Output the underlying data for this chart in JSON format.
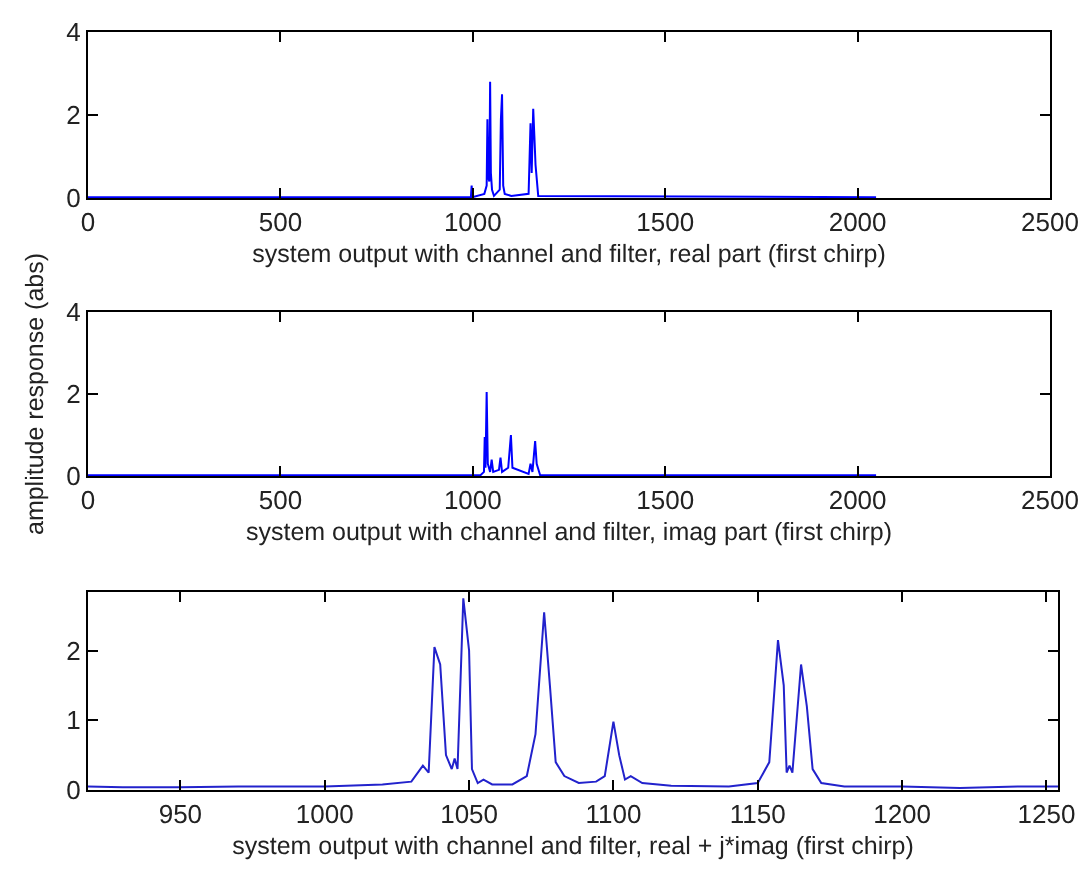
{
  "chart_data": [
    {
      "type": "line",
      "xlabel": "system output with channel and filter, real part (first chirp)",
      "xlim": [
        0,
        2500
      ],
      "xticks": [
        0,
        500,
        1000,
        1500,
        2000,
        2500
      ],
      "ylim": [
        0,
        4
      ],
      "yticks": [
        0,
        2,
        4
      ],
      "grid": false,
      "x": [
        0,
        995,
        997,
        999,
        1030,
        1036,
        1038,
        1040,
        1043,
        1045,
        1047,
        1050,
        1055,
        1070,
        1073,
        1076,
        1079,
        1083,
        1100,
        1145,
        1150,
        1153,
        1157,
        1160,
        1163,
        1170,
        2048
      ],
      "series": [
        {
          "color": "#0000ff",
          "values": [
            0.02,
            0.02,
            0.3,
            0.02,
            0.1,
            0.3,
            1.9,
            0.5,
            0.4,
            2.8,
            0.6,
            0.2,
            0.05,
            0.2,
            1.9,
            2.5,
            0.3,
            0.1,
            0.05,
            0.1,
            1.8,
            0.6,
            2.15,
            1.5,
            0.8,
            0.05,
            0.02
          ]
        }
      ]
    },
    {
      "type": "line",
      "xlabel": "system output with channel and filter, imag part (first chirp)",
      "ylabel": "amplitude response (abs)",
      "xlim": [
        0,
        2500
      ],
      "xticks": [
        0,
        500,
        1000,
        1500,
        2000,
        2500
      ],
      "ylim": [
        0,
        4
      ],
      "yticks": [
        0,
        2,
        4
      ],
      "grid": false,
      "x": [
        0,
        1020,
        1029,
        1031,
        1033,
        1036,
        1039,
        1045,
        1049,
        1053,
        1068,
        1072,
        1076,
        1092,
        1099,
        1103,
        1145,
        1150,
        1155,
        1162,
        1166,
        1175,
        2048
      ],
      "series": [
        {
          "color": "#0000ff",
          "values": [
            0.02,
            0.02,
            0.1,
            0.95,
            0.2,
            2.05,
            0.3,
            0.1,
            0.4,
            0.1,
            0.15,
            0.45,
            0.1,
            0.2,
            1.0,
            0.2,
            0.05,
            0.3,
            0.1,
            0.85,
            0.3,
            0.02,
            0.02
          ]
        }
      ]
    },
    {
      "type": "line",
      "xlabel": "system output with channel and filter, real + j*imag (first chirp)",
      "xlim": [
        918,
        1254
      ],
      "xticks": [
        950,
        1000,
        1050,
        1100,
        1150,
        1200,
        1250
      ],
      "ylim": [
        0,
        2.84
      ],
      "yticks": [
        0,
        1,
        2
      ],
      "grid": false,
      "x": [
        918,
        930,
        950,
        970,
        1000,
        1020,
        1030,
        1034,
        1036,
        1038,
        1040,
        1042,
        1044,
        1045,
        1046,
        1048,
        1050,
        1051,
        1053,
        1055,
        1058,
        1065,
        1070,
        1073,
        1076,
        1078,
        1080,
        1083,
        1088,
        1094,
        1097,
        1100,
        1102,
        1104,
        1106,
        1110,
        1120,
        1140,
        1150,
        1154,
        1157,
        1159,
        1160,
        1161,
        1162,
        1165,
        1167,
        1169,
        1172,
        1180,
        1200,
        1220,
        1240,
        1254
      ],
      "series": [
        {
          "color": "#2222cc",
          "values": [
            0.05,
            0.04,
            0.04,
            0.05,
            0.05,
            0.08,
            0.12,
            0.35,
            0.25,
            2.05,
            1.8,
            0.5,
            0.3,
            0.45,
            0.3,
            2.75,
            2.0,
            0.3,
            0.1,
            0.15,
            0.08,
            0.08,
            0.2,
            0.8,
            2.55,
            1.5,
            0.4,
            0.2,
            0.1,
            0.12,
            0.2,
            0.98,
            0.5,
            0.15,
            0.2,
            0.1,
            0.06,
            0.05,
            0.1,
            0.4,
            2.15,
            1.5,
            0.25,
            0.35,
            0.25,
            1.8,
            1.2,
            0.3,
            0.1,
            0.05,
            0.05,
            0.03,
            0.05,
            0.05
          ]
        }
      ]
    }
  ]
}
